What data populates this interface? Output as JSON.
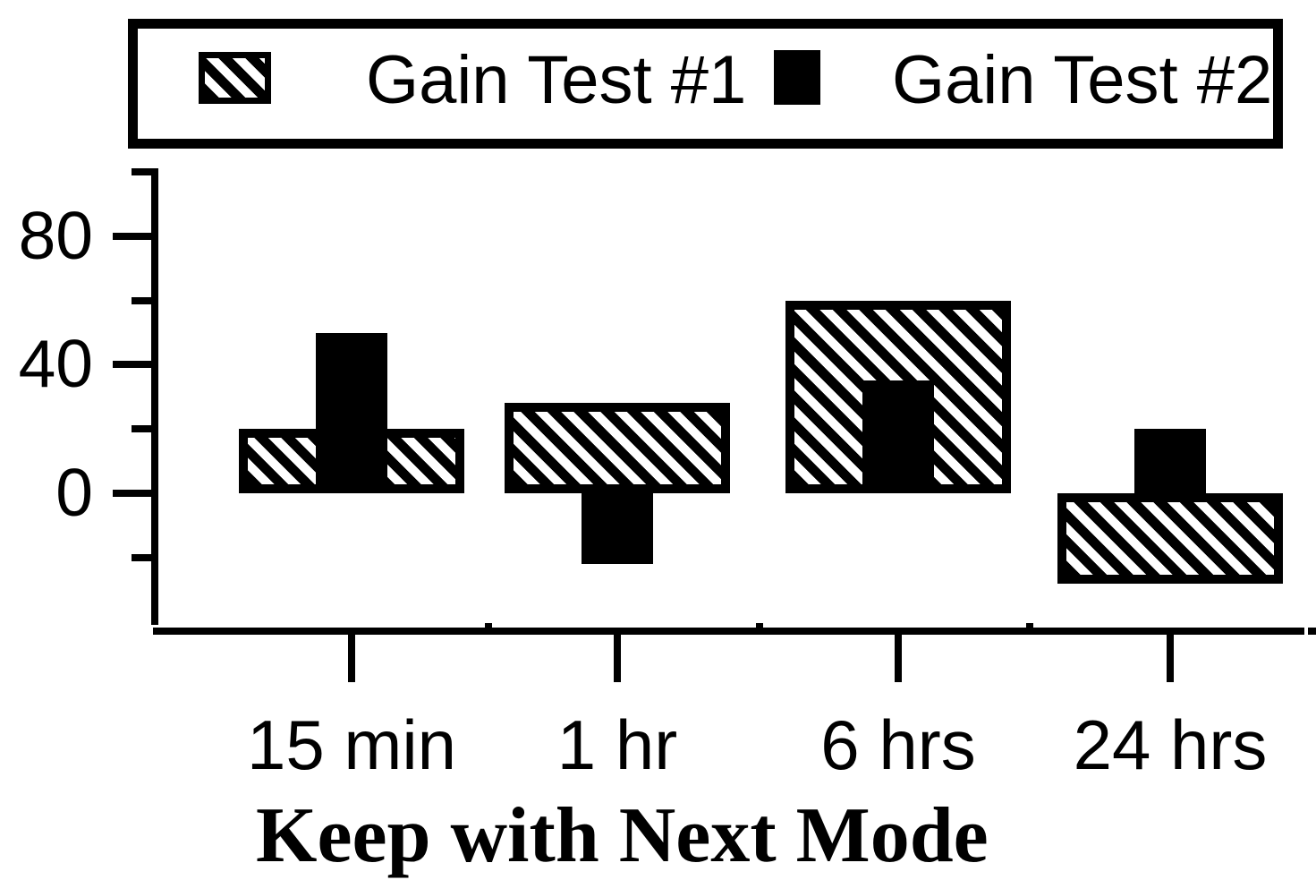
{
  "legend": {
    "items": [
      {
        "label": "Gain Test #1",
        "swatch": "hatched"
      },
      {
        "label": "Gain Test #2",
        "swatch": "solid-black"
      }
    ]
  },
  "chart_data": {
    "type": "bar",
    "title": "",
    "xlabel": "Keep with Next Mode",
    "ylabel": "",
    "categories": [
      "15 min",
      "1 hr",
      "6 hrs",
      "24 hrs"
    ],
    "series": [
      {
        "name": "Gain Test #1",
        "style": "hatched",
        "values": [
          20,
          28,
          60,
          -28
        ]
      },
      {
        "name": "Gain Test #2",
        "style": "solid-black",
        "values": [
          50,
          -22,
          35,
          20
        ]
      }
    ],
    "y_axis": {
      "major_ticks": [
        0,
        40,
        80
      ],
      "minor_ticks": [
        -20,
        20,
        60,
        100
      ],
      "tick_labels": [
        "0",
        "40",
        "80"
      ],
      "range": [
        -42,
        101
      ],
      "grid": false
    },
    "x_axis": {
      "tick_labels": [
        "15 min",
        "1 hr",
        "6 hrs",
        "24 hrs"
      ],
      "title": "Keep with Next Mode"
    },
    "legend_position": "top",
    "colors": {
      "ink": "#000000",
      "background": "#ffffff"
    }
  }
}
